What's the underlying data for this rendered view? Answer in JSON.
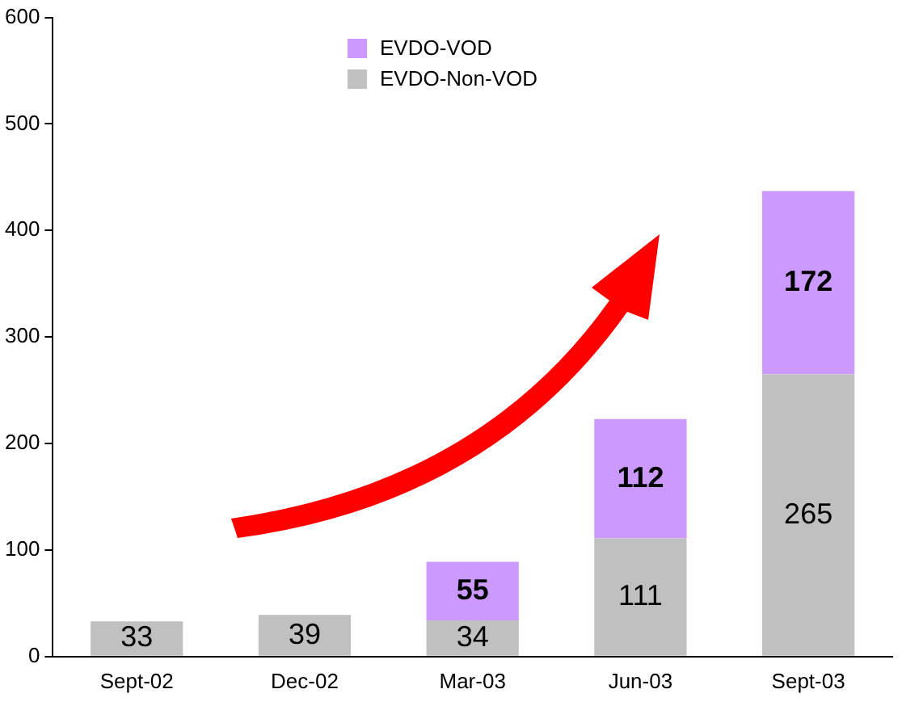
{
  "chart_data": {
    "type": "bar",
    "stacked": true,
    "categories": [
      "Sept-02",
      "Dec-02",
      "Mar-03",
      "Jun-03",
      "Sept-03"
    ],
    "series": [
      {
        "name": "EVDO-Non-VOD",
        "color": "#c0c0c0",
        "values": [
          33,
          39,
          34,
          111,
          265
        ]
      },
      {
        "name": "EVDO-VOD",
        "color": "#cc99ff",
        "values": [
          null,
          null,
          55,
          112,
          172
        ]
      }
    ],
    "ylim": [
      0,
      600
    ],
    "yticks": [
      0,
      100,
      200,
      300,
      400,
      500,
      600
    ],
    "grid": false,
    "legend": "top",
    "data_labels": true
  }
}
